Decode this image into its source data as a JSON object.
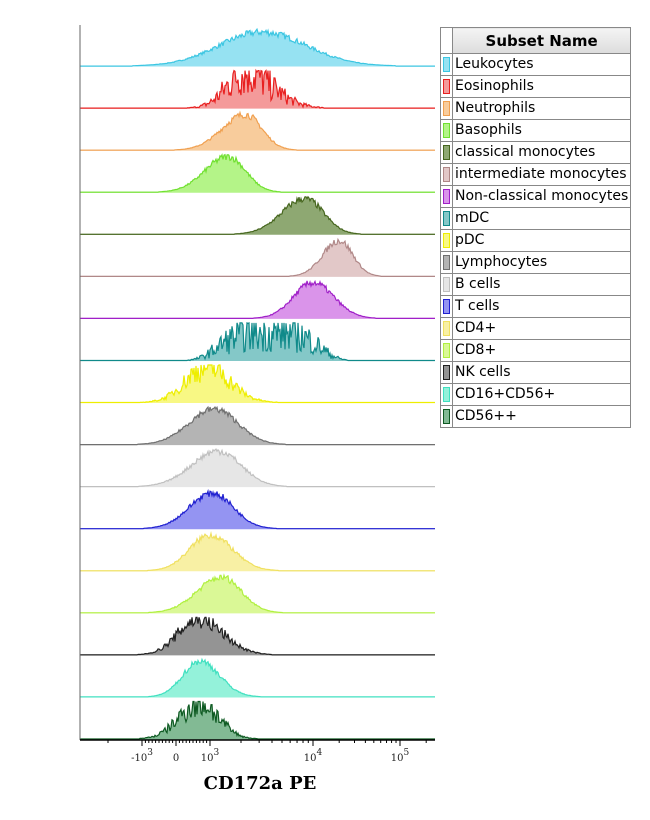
{
  "legend": {
    "header": "Subset Name"
  },
  "chart_data": {
    "type": "histogram-overlay",
    "xlabel": "CD172a PE",
    "x_scale": "biexponential",
    "x_ticks": [
      {
        "value": -1000,
        "label": "-10",
        "sup": "3"
      },
      {
        "value": 0,
        "label": "0",
        "sup": ""
      },
      {
        "value": 1000,
        "label": "10",
        "sup": "3"
      },
      {
        "value": 10000,
        "label": "10",
        "sup": "4"
      },
      {
        "value": 100000,
        "label": "10",
        "sup": "5"
      }
    ],
    "series": [
      {
        "name": "Leukocytes",
        "mode": 3200,
        "range": [
          -1250,
          88000
        ],
        "second_mode": 12700,
        "second_rel_height": 0.33,
        "fill": "#96e2f2",
        "stroke": "#3cc6e2"
      },
      {
        "name": "Eosinophils",
        "mode": 2200,
        "range": [
          400,
          14000
        ],
        "fill": "#f49a9a",
        "stroke": "#e82020"
      },
      {
        "name": "Neutrophils",
        "mode": 2200,
        "range": [
          0,
          6700
        ],
        "fill": "#f8cc9c",
        "stroke": "#f0a050"
      },
      {
        "name": "Basophils",
        "mode": 1500,
        "range": [
          -500,
          4800
        ],
        "fill": "#b4f488",
        "stroke": "#70e030"
      },
      {
        "name": "classical monocytes",
        "mode": 8400,
        "range": [
          1750,
          35000
        ],
        "fill": "#8ea872",
        "stroke": "#46661e"
      },
      {
        "name": "intermediate monocytes",
        "mode": 20000,
        "range": [
          6000,
          59000
        ],
        "fill": "#e2c8c8",
        "stroke": "#b08888"
      },
      {
        "name": "Non-classical monocytes",
        "mode": 10000,
        "range": [
          2700,
          52000
        ],
        "fill": "#da94ea",
        "stroke": "#a020c8"
      },
      {
        "name": "mDC",
        "mode": 3800,
        "range": [
          -800,
          70000
        ],
        "fill": "#84c8c8",
        "stroke": "#108a8a"
      },
      {
        "name": "pDC",
        "mode": 900,
        "range": [
          -950,
          4300
        ],
        "fill": "#f8f884",
        "stroke": "#eeee00"
      },
      {
        "name": "Lymphocytes",
        "mode": 1100,
        "range": [
          -1100,
          5300
        ],
        "fill": "#b4b4b4",
        "stroke": "#707070"
      },
      {
        "name": "B cells",
        "mode": 1200,
        "range": [
          -1100,
          5500
        ],
        "fill": "#e6e6e6",
        "stroke": "#c0c0c0"
      },
      {
        "name": "T cells",
        "mode": 1050,
        "range": [
          -950,
          4300
        ],
        "fill": "#9494f2",
        "stroke": "#2020d0"
      },
      {
        "name": "CD4+",
        "mode": 1000,
        "range": [
          -800,
          4500
        ],
        "fill": "#f8f0a4",
        "stroke": "#f0e060"
      },
      {
        "name": "CD8+",
        "mode": 1300,
        "range": [
          -800,
          4900
        ],
        "fill": "#daf896",
        "stroke": "#b0f040"
      },
      {
        "name": "NK cells",
        "mode": 650,
        "range": [
          -1100,
          4000
        ],
        "fill": "#949494",
        "stroke": "#202020"
      },
      {
        "name": "CD16+CD56+",
        "mode": 700,
        "range": [
          -800,
          3000
        ],
        "fill": "#94f2da",
        "stroke": "#40e0c0"
      },
      {
        "name": "CD56++",
        "mode": 700,
        "range": [
          -1100,
          2800
        ],
        "fill": "#82ba94",
        "stroke": "#0e5a22"
      }
    ]
  }
}
